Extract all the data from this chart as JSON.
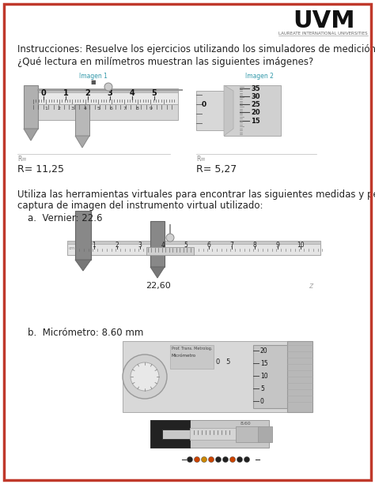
{
  "page_bg": "#ffffff",
  "border_color": "#c0392b",
  "border_lw": 2.5,
  "uvm_text": "UVM",
  "uvm_subtitle": "LAUREATE INTERNATIONAL UNIVERSITIES",
  "instruction_line1": "Instrucciones: Resuelve los ejercicios utilizando los simuladores de medición",
  "instruction_line2": "¿Qué lectura en milímetros muestran las siguientes imágenes?",
  "imagen1_label": "Imagen 1",
  "imagen2_label": "Imagen 2",
  "r1_text": "R= 11,25",
  "r2_text": "R= 5,27",
  "section2_line1": "Utiliza las herramientas virtuales para encontrar las siguientes medidas y pega la",
  "section2_line2": "captura de imagen del instrumento virtual utilizado:",
  "vernier_label": "a.  Vernier: 22.6",
  "vernier_value": "22,60",
  "vernier_z": "z",
  "micrometer_label": "b.  Micrómetro: 8.60 mm",
  "font_size_body": 8.5,
  "font_size_uvm": 20,
  "text_color": "#222222",
  "gray_dark": "#888888",
  "gray_mid": "#cccccc",
  "gray_light": "#e0e0e0",
  "blue_label": "#3399aa",
  "dot_colors": [
    "#222222",
    "#cc4400",
    "#cc8800",
    "#cc4400",
    "#222222",
    "#222222",
    "#cc4400",
    "#222222",
    "#222222"
  ]
}
